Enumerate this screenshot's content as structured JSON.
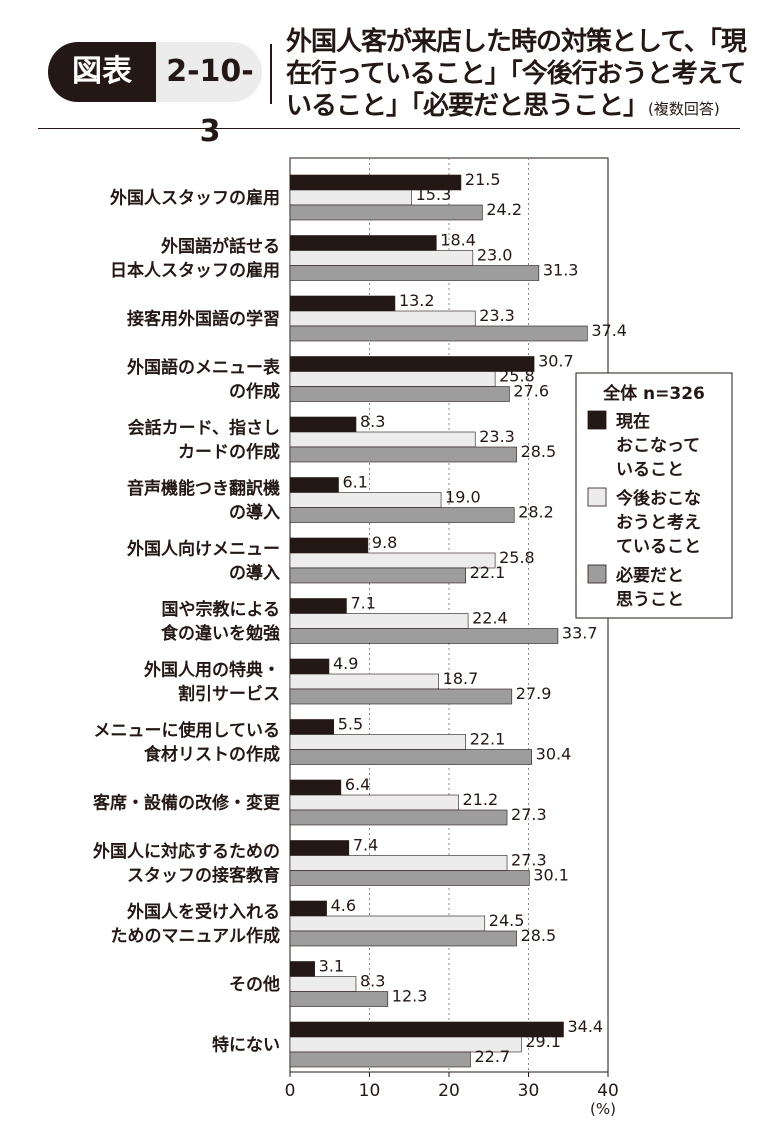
{
  "header": {
    "badge_label": "図表",
    "figure_number": "2-10-3",
    "title_main": "外国人客が来店した時の対策として、「現在行っていること」「今後行おうと考えていること」「必要だと思うこと」",
    "title_note": "(複数回答)"
  },
  "chart_data": {
    "type": "bar",
    "orientation": "horizontal",
    "xlim": [
      0,
      40
    ],
    "xticks": [
      "0",
      "10",
      "20",
      "30",
      "40"
    ],
    "xunit": "(%)",
    "grid": "vertical dotted at 10, 20, 30",
    "legend": {
      "title": "全体 n=326",
      "placement": "right",
      "entries": [
        {
          "label_lines": [
            "現在",
            "おこなって",
            "いること"
          ],
          "color": "#231815"
        },
        {
          "label_lines": [
            "今後おこな",
            "おうと考え",
            "ていること"
          ],
          "color": "#ececec"
        },
        {
          "label_lines": [
            "必要だと",
            "思うこと"
          ],
          "color": "#9d9d9d"
        }
      ]
    },
    "series": [
      {
        "color": "#231815",
        "values": [
          21.5,
          18.4,
          13.2,
          30.7,
          8.3,
          6.1,
          9.8,
          7.1,
          4.9,
          5.5,
          6.4,
          7.4,
          4.6,
          3.1,
          34.4
        ]
      },
      {
        "color": "#ececec",
        "values": [
          15.3,
          23.0,
          23.3,
          25.8,
          23.3,
          19.0,
          25.8,
          22.4,
          18.7,
          22.1,
          21.2,
          27.3,
          24.5,
          8.3,
          29.1
        ]
      },
      {
        "color": "#9d9d9d",
        "values": [
          24.2,
          31.3,
          37.4,
          27.6,
          28.5,
          28.2,
          22.1,
          33.7,
          27.9,
          30.4,
          27.3,
          30.1,
          28.5,
          12.3,
          22.7
        ]
      }
    ],
    "value_labels": [
      [
        "21.5",
        "18.4",
        "13.2",
        "30.7",
        "8.3",
        "6.1",
        "9.8",
        "7.1",
        "4.9",
        "5.5",
        "6.4",
        "7.4",
        "4.6",
        "3.1",
        "34.4"
      ],
      [
        "15.3",
        "23.0",
        "23.3",
        "25.8",
        "23.3",
        "19.0",
        "25.8",
        "22.4",
        "18.7",
        "22.1",
        "21.2",
        "27.3",
        "24.5",
        "8.3",
        "29.1"
      ],
      [
        "24.2",
        "31.3",
        "37.4",
        "27.6",
        "28.5",
        "28.2",
        "22.1",
        "33.7",
        "27.9",
        "30.4",
        "27.3",
        "30.1",
        "28.5",
        "12.3",
        "22.7"
      ]
    ],
    "categories": [
      [
        "外国人スタッフの雇用"
      ],
      [
        "外国語が話せる",
        "日本人スタッフの雇用"
      ],
      [
        "接客用外国語の学習"
      ],
      [
        "外国語のメニュー表",
        "の作成"
      ],
      [
        "会話カード、指さし",
        "カードの作成"
      ],
      [
        "音声機能つき翻訳機",
        "の導入"
      ],
      [
        "外国人向けメニュー",
        "の導入"
      ],
      [
        "国や宗教による",
        "食の違いを勉強"
      ],
      [
        "外国人用の特典・",
        "割引サービス"
      ],
      [
        "メニューに使用している",
        "食材リストの作成"
      ],
      [
        "客席・設備の改修・変更"
      ],
      [
        "外国人に対応するための",
        "スタッフの接客教育"
      ],
      [
        "外国人を受け入れる",
        "ためのマニュアル作成"
      ],
      [
        "その他"
      ],
      [
        "特にない"
      ]
    ]
  }
}
